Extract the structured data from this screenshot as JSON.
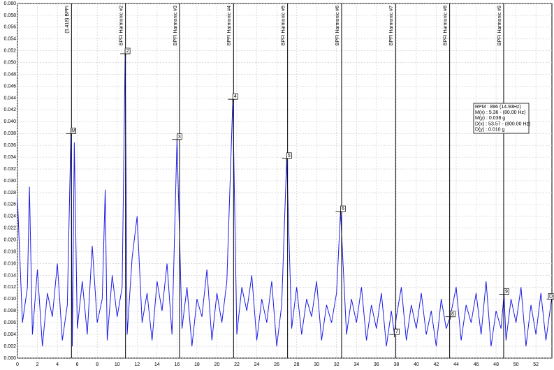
{
  "chart_data": {
    "type": "line",
    "xlim": [
      0,
      53.6
    ],
    "ylim": [
      0,
      0.06
    ],
    "xticks": [
      0,
      2,
      4,
      6,
      8,
      10,
      12,
      14,
      16,
      18,
      20,
      22,
      24,
      26,
      28,
      30,
      32,
      34,
      36,
      38,
      40,
      42,
      44,
      46,
      48,
      50,
      52
    ],
    "yticks": [
      {
        "value": 0,
        "label": "0.000"
      },
      0.002,
      0.004,
      0.006,
      0.008,
      {
        "value": 0.01,
        "label": "0.010"
      },
      0.012,
      0.014,
      0.016,
      0.018,
      {
        "value": 0.02,
        "label": "0.020"
      },
      0.022,
      0.024,
      0.026,
      0.028,
      {
        "value": 0.03,
        "label": "0.030"
      },
      0.032,
      0.034,
      0.036,
      0.038,
      {
        "value": 0.04,
        "label": "0.040"
      },
      0.042,
      0.044,
      0.046,
      0.048,
      {
        "value": 0.05,
        "label": "0.050"
      },
      0.052,
      0.054,
      0.056,
      0.058,
      {
        "value": 0.06,
        "label": "0.060"
      }
    ],
    "grid": true,
    "series": [
      {
        "color": "#1c1ce6",
        "x": [
          0,
          0.5,
          1,
          1.2,
          1.5,
          2,
          2.5,
          3,
          3.5,
          4,
          4.5,
          5,
          5.36,
          5.5,
          5.7,
          6,
          6.5,
          7,
          7.5,
          8,
          8.5,
          8.8,
          9,
          9.5,
          10,
          10.5,
          10.8,
          11,
          11.5,
          12,
          12.5,
          13,
          13.5,
          14,
          14.5,
          15,
          15.5,
          16,
          16.5,
          17,
          17.5,
          18,
          18.5,
          19,
          19.5,
          20,
          20.5,
          21,
          21.6,
          22,
          22.5,
          23,
          23.5,
          24,
          24.5,
          25,
          25.5,
          26,
          26.5,
          27,
          27.5,
          28,
          28.5,
          29,
          29.5,
          30,
          30.5,
          31,
          31.5,
          32,
          32.4,
          33,
          33.5,
          34,
          34.5,
          35,
          35.5,
          36,
          36.5,
          37,
          37.5,
          37.8,
          38,
          38.5,
          39,
          39.5,
          40,
          40.5,
          41,
          41.5,
          42,
          42.5,
          43,
          43.4,
          44,
          44.5,
          45,
          45.5,
          46,
          46.5,
          47,
          47.5,
          48,
          48.5,
          48.8,
          49,
          49.5,
          50,
          50.5,
          51,
          51.5,
          52,
          52.5,
          53,
          53.57
        ],
        "values": [
          0.027,
          0.006,
          0.012,
          0.029,
          0.004,
          0.015,
          0.002,
          0.011,
          0.007,
          0.016,
          0.003,
          0.009,
          0.038,
          0.002,
          0.0365,
          0.005,
          0.013,
          0.004,
          0.019,
          0.006,
          0.01,
          0.0285,
          0.003,
          0.014,
          0.007,
          0.012,
          0.0515,
          0.004,
          0.017,
          0.024,
          0.006,
          0.011,
          0.003,
          0.013,
          0.008,
          0.016,
          0.004,
          0.037,
          0.005,
          0.012,
          0.002,
          0.01,
          0.007,
          0.015,
          0.003,
          0.011,
          0.006,
          0.013,
          0.0438,
          0.004,
          0.012,
          0.008,
          0.014,
          0.003,
          0.01,
          0.006,
          0.013,
          0.002,
          0.009,
          0.0338,
          0.005,
          0.012,
          0.004,
          0.01,
          0.007,
          0.013,
          0.003,
          0.009,
          0.006,
          0.011,
          0.0248,
          0.004,
          0.01,
          0.006,
          0.012,
          0.003,
          0.009,
          0.005,
          0.011,
          0.002,
          0.008,
          0.004,
          0.007,
          0.012,
          0.003,
          0.009,
          0.005,
          0.011,
          0.004,
          0.008,
          0.002,
          0.01,
          0.005,
          0.007,
          0.012,
          0.003,
          0.009,
          0.006,
          0.011,
          0.004,
          0.013,
          0.002,
          0.008,
          0.005,
          0.0108,
          0.003,
          0.01,
          0.006,
          0.012,
          0.002,
          0.009,
          0.004,
          0.011,
          0.003,
          0.01
        ]
      }
    ],
    "harmonics": [
      {
        "label": "(5.418)  BPFI",
        "x": 5.418
      },
      {
        "label": "BPFI Harmonic #2",
        "x": 10.836
      },
      {
        "label": "BPFI Harmonic #3",
        "x": 16.254
      },
      {
        "label": "BPFI Harmonic #4",
        "x": 21.672
      },
      {
        "label": "BPFI Harmonic #5",
        "x": 27.09
      },
      {
        "label": "BPFI Harmonic #6",
        "x": 32.508
      },
      {
        "label": "BPFI Harmonic #7",
        "x": 37.926
      },
      {
        "label": "BPFI Harmonic #8",
        "x": 43.344
      },
      {
        "label": "BPFI Harmonic #9",
        "x": 48.762
      }
    ],
    "markers": [
      {
        "label": "M",
        "x": 5.36,
        "y": 0.038
      },
      {
        "label": "2",
        "x": 10.8,
        "y": 0.0515
      },
      {
        "label": "3",
        "x": 16.0,
        "y": 0.037
      },
      {
        "label": "4",
        "x": 21.6,
        "y": 0.0438
      },
      {
        "label": "5",
        "x": 27.0,
        "y": 0.0338
      },
      {
        "label": "6",
        "x": 32.4,
        "y": 0.0248
      },
      {
        "label": "7",
        "x": 37.8,
        "y": 0.004
      },
      {
        "label": "8",
        "x": 43.4,
        "y": 0.007
      },
      {
        "label": "9",
        "x": 48.8,
        "y": 0.0108
      },
      {
        "label": "D",
        "x": 53.57,
        "y": 0.01
      }
    ],
    "info": [
      "RPM : 896 (14.93Hz)",
      "M(x) : 5.36 - (80.00 Hz)",
      "M(y) : 0.038 g",
      "D(x) : 53.57 - (800.00 Hz)",
      "D(y) : 0.010 g"
    ]
  }
}
